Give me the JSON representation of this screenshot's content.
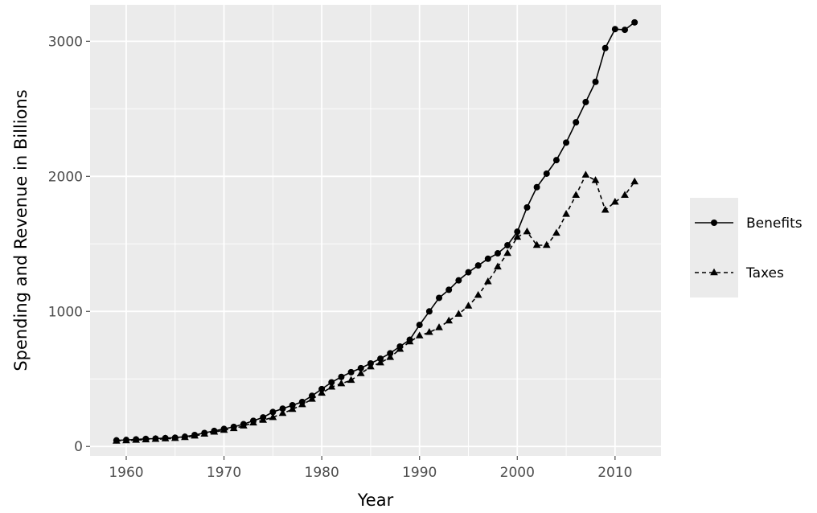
{
  "chart_data": {
    "type": "line",
    "title": "",
    "xlabel": "Year",
    "ylabel": "Spending and Revenue in Billions",
    "xlim": [
      1956.3,
      2014.7
    ],
    "ylim": [
      -70,
      3270
    ],
    "x_ticks": [
      1960,
      1970,
      1980,
      1990,
      2000,
      2010
    ],
    "y_ticks": [
      0,
      1000,
      2000,
      3000
    ],
    "grid": true,
    "legend_position": "right",
    "x": [
      1959,
      1960,
      1961,
      1962,
      1963,
      1964,
      1965,
      1966,
      1967,
      1968,
      1969,
      1970,
      1971,
      1972,
      1973,
      1974,
      1975,
      1976,
      1977,
      1978,
      1979,
      1980,
      1981,
      1982,
      1983,
      1984,
      1985,
      1986,
      1987,
      1988,
      1989,
      1990,
      1991,
      1992,
      1993,
      1994,
      1995,
      1996,
      1997,
      1998,
      1999,
      2000,
      2001,
      2002,
      2003,
      2004,
      2005,
      2006,
      2007,
      2008,
      2009,
      2010,
      2011,
      2012
    ],
    "series": [
      {
        "name": "Benefits",
        "marker": "circle",
        "line": "solid",
        "values": [
          45,
          48,
          52,
          56,
          58,
          62,
          65,
          72,
          85,
          100,
          115,
          130,
          145,
          165,
          190,
          215,
          255,
          280,
          305,
          330,
          375,
          425,
          475,
          515,
          550,
          580,
          615,
          650,
          690,
          740,
          790,
          900,
          1000,
          1100,
          1160,
          1230,
          1290,
          1340,
          1390,
          1430,
          1490,
          1590,
          1770,
          1920,
          2020,
          2120,
          2250,
          2400,
          2550,
          2700,
          2950,
          3090,
          3085,
          3140
        ]
      },
      {
        "name": "Taxes",
        "marker": "triangle",
        "line": "dashed",
        "values": [
          40,
          43,
          47,
          50,
          53,
          57,
          60,
          67,
          78,
          92,
          107,
          120,
          133,
          152,
          175,
          195,
          215,
          245,
          275,
          310,
          350,
          395,
          440,
          465,
          490,
          540,
          590,
          620,
          660,
          720,
          775,
          820,
          845,
          880,
          930,
          980,
          1040,
          1120,
          1220,
          1330,
          1430,
          1550,
          1590,
          1490,
          1490,
          1580,
          1720,
          1860,
          2010,
          1970,
          1750,
          1810,
          1860,
          1960
        ]
      }
    ],
    "colors": {
      "panel": "#ebebeb",
      "grid": "#ffffff",
      "line": "#000000",
      "tick": "#4d4d4d"
    }
  }
}
